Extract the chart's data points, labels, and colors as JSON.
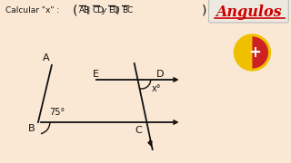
{
  "bg_color": "#fae8d5",
  "angulos_text": "Angulos",
  "angulos_color": "#cc0000",
  "badge_box_color": "#e8e0d8",
  "badge_yellow": "#f0c000",
  "badge_red": "#cc2222",
  "line_color": "#111111",
  "text_color": "#111111",
  "angle_label_B": "75°",
  "angle_label_x": "x°",
  "label_A": "A",
  "label_B": "B",
  "label_C": "C",
  "label_D": "D",
  "label_E": "E",
  "header": "Calcular \"x\" :",
  "sep": "∥",
  "overline_labels": [
    "AB",
    "CD",
    "ED",
    "BC"
  ]
}
